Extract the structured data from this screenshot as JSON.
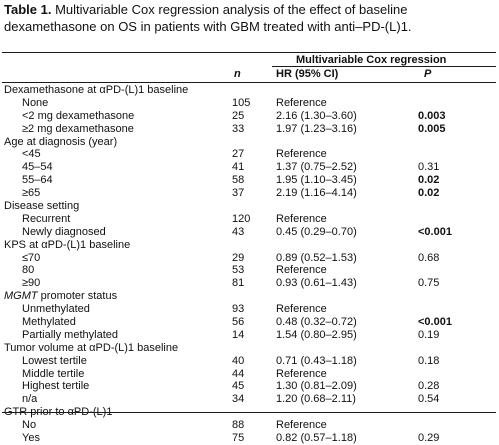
{
  "caption": {
    "label": "Table 1.",
    "text": " Multivariable Cox regression analysis of the effect of baseline dexamethasone on OS in patients with GBM treated with anti–PD-(L)1."
  },
  "header": {
    "group": "Multivariable Cox regression",
    "n": "n",
    "hr": "HR (95% CI)",
    "p": "P"
  },
  "rows": [
    {
      "type": "section",
      "label": "Dexamethasone at αPD-(L)1 baseline"
    },
    {
      "type": "child",
      "label": "None",
      "n": "105",
      "hr": "Reference",
      "p": ""
    },
    {
      "type": "child",
      "label": "<2 mg dexamethasone",
      "n": "25",
      "hr": "2.16 (1.30–3.60)",
      "p": "0.003",
      "bold": true
    },
    {
      "type": "child",
      "label": "≥2 mg dexamethasone",
      "n": "33",
      "hr": "1.97 (1.23–3.16)",
      "p": "0.005",
      "bold": true
    },
    {
      "type": "section",
      "label": "Age at diagnosis (year)"
    },
    {
      "type": "child",
      "label": "<45",
      "n": "27",
      "hr": "Reference",
      "p": ""
    },
    {
      "type": "child",
      "label": "45–54",
      "n": "41",
      "hr": "1.37 (0.75–2.52)",
      "p": "0.31"
    },
    {
      "type": "child",
      "label": "55–64",
      "n": "58",
      "hr": "1.95 (1.10–3.45)",
      "p": "0.02",
      "bold": true
    },
    {
      "type": "child",
      "label": "≥65",
      "n": "37",
      "hr": "2.19 (1.16–4.14)",
      "p": "0.02",
      "bold": true
    },
    {
      "type": "section",
      "label": "Disease setting"
    },
    {
      "type": "child",
      "label": "Recurrent",
      "n": "120",
      "hr": "Reference",
      "p": ""
    },
    {
      "type": "child",
      "label": "Newly diagnosed",
      "n": "43",
      "hr": "0.45 (0.29–0.70)",
      "p": "<0.001",
      "bold": true
    },
    {
      "type": "section",
      "label": "KPS at αPD-(L)1 baseline"
    },
    {
      "type": "child",
      "label": "≤70",
      "n": "29",
      "hr": "0.89 (0.52–1.53)",
      "p": "0.68"
    },
    {
      "type": "child",
      "label": "80",
      "n": "53",
      "hr": "Reference",
      "p": ""
    },
    {
      "type": "child",
      "label": "≥90",
      "n": "81",
      "hr": "0.93 (0.61–1.43)",
      "p": "0.75"
    },
    {
      "type": "section",
      "label": "MGMT",
      "label_rest": " promoter status"
    },
    {
      "type": "child",
      "label": "Unmethylated",
      "n": "93",
      "hr": "Reference",
      "p": ""
    },
    {
      "type": "child",
      "label": "Methylated",
      "n": "56",
      "hr": "0.48 (0.32–0.72)",
      "p": "<0.001",
      "bold": true
    },
    {
      "type": "child",
      "label": "Partially methylated",
      "n": "14",
      "hr": "1.54 (0.80–2.95)",
      "p": "0.19"
    },
    {
      "type": "section",
      "label": "Tumor volume at αPD-(L)1 baseline"
    },
    {
      "type": "child",
      "label": "Lowest tertile",
      "n": "40",
      "hr": "0.71 (0.43–1.18)",
      "p": "0.18"
    },
    {
      "type": "child",
      "label": "Middle tertile",
      "n": "44",
      "hr": "Reference",
      "p": ""
    },
    {
      "type": "child",
      "label": "Highest tertile",
      "n": "45",
      "hr": "1.30 (0.81–2.09)",
      "p": "0.28"
    },
    {
      "type": "child",
      "label": "n/a",
      "n": "34",
      "hr": "1.20 (0.68–2.11)",
      "p": "0.54"
    },
    {
      "type": "section",
      "label": "GTR prior to αPD-(L)1"
    },
    {
      "type": "child",
      "label": "No",
      "n": "88",
      "hr": "Reference",
      "p": ""
    },
    {
      "type": "child",
      "label": "Yes",
      "n": "75",
      "hr": "0.82 (0.57–1.18)",
      "p": "0.29"
    }
  ]
}
